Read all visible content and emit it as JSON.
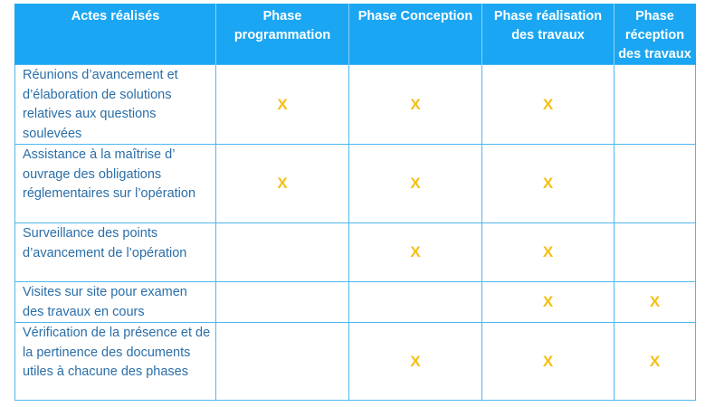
{
  "table": {
    "headers": [
      "Actes réalisés",
      "Phase programmation",
      "Phase Conception",
      "Phase réalisation des travaux",
      "Phase réception des travaux"
    ],
    "mark_symbol": "X",
    "rows": [
      {
        "act": "Réunions d’avancement et d’élaboration de solutions relatives aux questions soulevées",
        "cells": [
          "X",
          "X",
          "X",
          ""
        ]
      },
      {
        "act": "Assistance à la maîtrise d’ ouvrage des obligations réglementaires sur l’opération",
        "cells": [
          "X",
          "X",
          "X",
          ""
        ]
      },
      {
        "act": "Surveillance des points d’avancement de l’opération",
        "cells": [
          "",
          "X",
          "X",
          ""
        ]
      },
      {
        "act": "Visites sur site pour examen des travaux en cours",
        "cells": [
          "",
          "",
          "X",
          "X"
        ]
      },
      {
        "act": "Vérification de la présence et de la pertinence des documents utiles à chacune des phases",
        "cells": [
          "",
          "X",
          "X",
          "X"
        ]
      }
    ]
  },
  "colors": {
    "header_bg": "#1aa6f2",
    "header_text": "#ffffff",
    "body_text": "#2a6ea8",
    "mark": "#f6bf12",
    "border": "#4db8ef"
  }
}
